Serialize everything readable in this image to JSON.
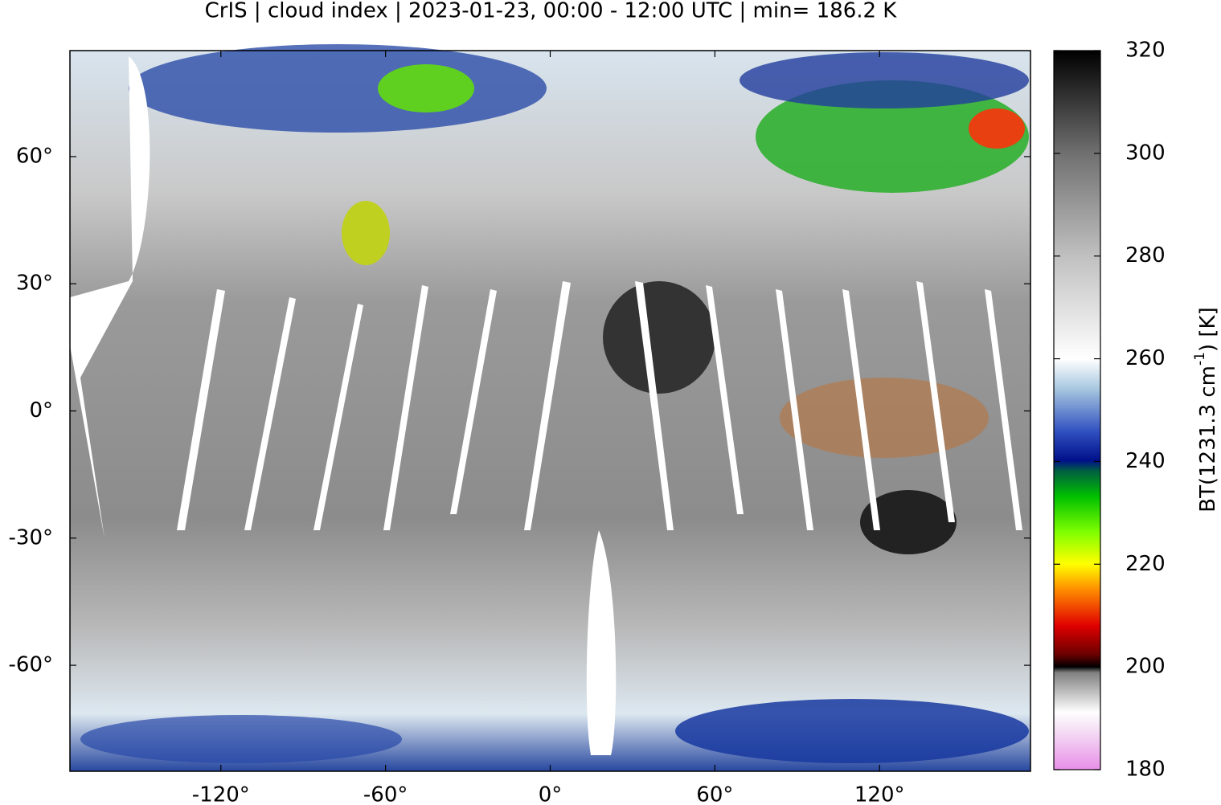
{
  "title": "CrIS | cloud index | 2023-01-23, 00:00 - 12:00 UTC | min= 186.2 K",
  "map": {
    "xlim": [
      -175,
      175
    ],
    "ylim": [
      -85,
      85
    ],
    "xticks": [
      {
        "value": -120,
        "label": "-120°"
      },
      {
        "value": -60,
        "label": "-60°"
      },
      {
        "value": 0,
        "label": "0°"
      },
      {
        "value": 60,
        "label": "60°"
      },
      {
        "value": 120,
        "label": "120°"
      }
    ],
    "yticks": [
      {
        "value": 60,
        "label": "60°"
      },
      {
        "value": 30,
        "label": "30°"
      },
      {
        "value": 0,
        "label": "0°"
      },
      {
        "value": -30,
        "label": "-30°"
      },
      {
        "value": -60,
        "label": "-60°"
      }
    ]
  },
  "colorbar": {
    "lim": [
      180,
      320
    ],
    "ticks": [
      180,
      200,
      220,
      240,
      260,
      280,
      300,
      320
    ],
    "label_parts": [
      "BT(1231.3 cm",
      "-1",
      ") [K]"
    ]
  }
}
